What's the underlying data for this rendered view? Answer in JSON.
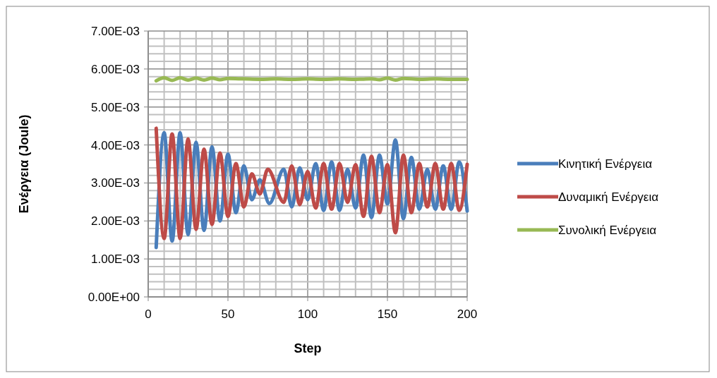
{
  "chart_data": {
    "type": "line",
    "xlabel": "Step",
    "ylabel": "Ενέργεια (Joule)",
    "xlim": [
      0,
      200
    ],
    "ylim": [
      0,
      0.007
    ],
    "xticks": [
      0,
      {
        "value": 10,
        "label": null
      },
      {
        "value": 20,
        "label": null
      },
      {
        "value": 30,
        "label": null
      },
      {
        "value": 40,
        "label": null
      },
      50,
      {
        "value": 60,
        "label": null
      },
      {
        "value": 70,
        "label": null
      },
      {
        "value": 80,
        "label": null
      },
      {
        "value": 90,
        "label": null
      },
      100,
      {
        "value": 110,
        "label": null
      },
      {
        "value": 120,
        "label": null
      },
      {
        "value": 130,
        "label": null
      },
      {
        "value": 140,
        "label": null
      },
      150,
      {
        "value": 160,
        "label": null
      },
      {
        "value": 170,
        "label": null
      },
      {
        "value": 180,
        "label": null
      },
      {
        "value": 190,
        "label": null
      },
      200
    ],
    "yticks": [
      {
        "value": 0,
        "label": "0.00E+00"
      },
      {
        "value": 0.0002,
        "label": null
      },
      {
        "value": 0.0004,
        "label": null
      },
      {
        "value": 0.0006,
        "label": null
      },
      {
        "value": 0.0008,
        "label": null
      },
      {
        "value": 0.001,
        "label": "1.00E-03"
      },
      {
        "value": 0.0012,
        "label": null
      },
      {
        "value": 0.0014,
        "label": null
      },
      {
        "value": 0.0016,
        "label": null
      },
      {
        "value": 0.0018,
        "label": null
      },
      {
        "value": 0.002,
        "label": "2.00E-03"
      },
      {
        "value": 0.0022,
        "label": null
      },
      {
        "value": 0.0024,
        "label": null
      },
      {
        "value": 0.0026,
        "label": null
      },
      {
        "value": 0.0028,
        "label": null
      },
      {
        "value": 0.003,
        "label": "3.00E-03"
      },
      {
        "value": 0.0032,
        "label": null
      },
      {
        "value": 0.0034,
        "label": null
      },
      {
        "value": 0.0036,
        "label": null
      },
      {
        "value": 0.0038,
        "label": null
      },
      {
        "value": 0.004,
        "label": "4.00E-03"
      },
      {
        "value": 0.0042,
        "label": null
      },
      {
        "value": 0.0044,
        "label": null
      },
      {
        "value": 0.0046,
        "label": null
      },
      {
        "value": 0.0048,
        "label": null
      },
      {
        "value": 0.005,
        "label": "5.00E-03"
      },
      {
        "value": 0.0052,
        "label": null
      },
      {
        "value": 0.0054,
        "label": null
      },
      {
        "value": 0.0056,
        "label": null
      },
      {
        "value": 0.0058,
        "label": null
      },
      {
        "value": 0.006,
        "label": "6.00E-03"
      },
      {
        "value": 0.0062,
        "label": null
      },
      {
        "value": 0.0064,
        "label": null
      },
      {
        "value": 0.0066,
        "label": null
      },
      {
        "value": 0.0068,
        "label": null
      },
      {
        "value": 0.007,
        "label": "7.00E-03"
      }
    ],
    "grid": true,
    "legend": "right",
    "marker": "none",
    "line_style": "solid",
    "series": [
      {
        "name": "Κινητική Ενέργεια",
        "color": "#4a7ebb",
        "x": [
          5,
          10,
          15,
          20,
          25,
          30,
          35,
          40,
          45,
          50,
          55,
          60,
          65,
          70,
          76,
          85,
          90,
          95,
          100,
          105,
          110,
          115,
          120,
          125,
          130,
          135,
          140,
          145,
          150,
          155,
          160,
          165,
          170,
          175,
          180,
          185,
          190,
          195,
          200
        ],
        "values": [
          0.0013,
          0.00432,
          0.00147,
          0.00432,
          0.00164,
          0.00407,
          0.00175,
          0.00395,
          0.002,
          0.00376,
          0.00222,
          0.00345,
          0.00256,
          0.00308,
          0.00246,
          0.00336,
          0.00237,
          0.0034,
          0.00256,
          0.00351,
          0.00228,
          0.00355,
          0.00228,
          0.00336,
          0.00234,
          0.00373,
          0.00209,
          0.00373,
          0.00245,
          0.00413,
          0.00206,
          0.00367,
          0.00231,
          0.00336,
          0.00231,
          0.00345,
          0.00231,
          0.00355,
          0.00226
        ]
      },
      {
        "name": "Δυναμική Ενέργεια",
        "color": "#be4b48",
        "x": [
          5,
          10,
          15,
          20,
          25,
          30,
          35,
          40,
          45,
          50,
          55,
          60,
          65,
          70,
          75,
          85,
          90,
          95,
          100,
          105,
          110,
          115,
          120,
          125,
          130,
          135,
          140,
          145,
          150,
          155,
          160,
          165,
          170,
          175,
          180,
          185,
          190,
          195,
          200
        ],
        "values": [
          0.00444,
          0.00154,
          0.00429,
          0.00154,
          0.00416,
          0.00178,
          0.00389,
          0.00191,
          0.00379,
          0.00212,
          0.00351,
          0.00237,
          0.00324,
          0.00271,
          0.00336,
          0.00249,
          0.00345,
          0.00243,
          0.0033,
          0.00234,
          0.00351,
          0.00231,
          0.00351,
          0.00249,
          0.00348,
          0.00212,
          0.0037,
          0.00222,
          0.00348,
          0.00169,
          0.00373,
          0.00222,
          0.00351,
          0.00237,
          0.00351,
          0.00231,
          0.00351,
          0.00228,
          0.00349
        ]
      },
      {
        "name": "Συνολική Ενέργεια",
        "color": "#98b954",
        "x": [
          5,
          10,
          15,
          20,
          25,
          30,
          35,
          40,
          45,
          50,
          60,
          70,
          80,
          90,
          100,
          110,
          120,
          130,
          140,
          145,
          150,
          155,
          160,
          170,
          180,
          190,
          200
        ],
        "values": [
          0.00569,
          0.00577,
          0.0057,
          0.00577,
          0.00571,
          0.00576,
          0.00571,
          0.00576,
          0.00572,
          0.00575,
          0.00574,
          0.00573,
          0.00574,
          0.00573,
          0.00574,
          0.00573,
          0.00574,
          0.00573,
          0.00574,
          0.00572,
          0.00576,
          0.00571,
          0.00575,
          0.00573,
          0.00574,
          0.00573,
          0.00573
        ]
      }
    ]
  }
}
